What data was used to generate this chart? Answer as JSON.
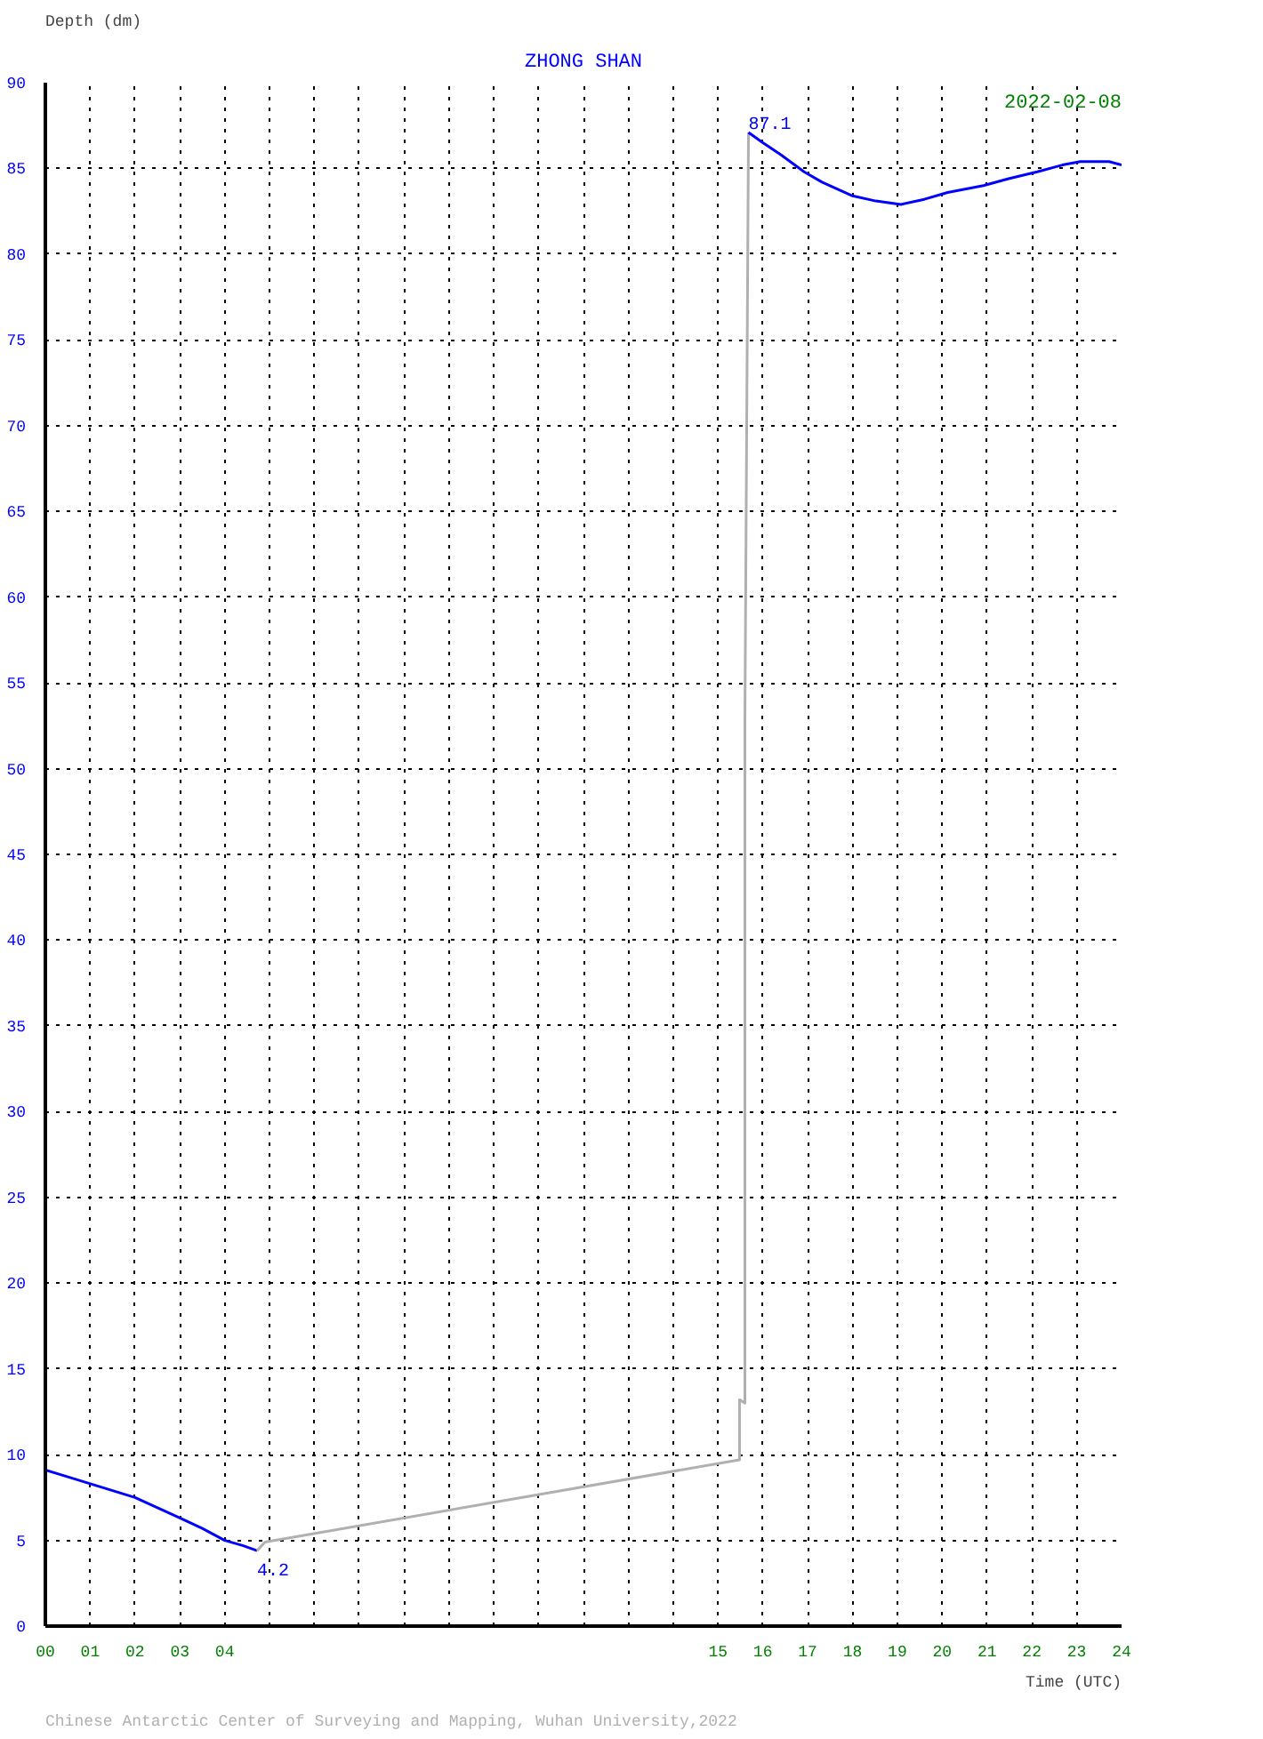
{
  "chart_data": {
    "type": "line",
    "title": "ZHONG SHAN",
    "xlabel": "Time (UTC)",
    "ylabel": "Depth (dm)",
    "xlim": [
      0,
      24
    ],
    "ylim": [
      0,
      90
    ],
    "xticks": [
      {
        "value": 0,
        "label": "00"
      },
      {
        "value": 1,
        "label": "01"
      },
      {
        "value": 2,
        "label": "02"
      },
      {
        "value": 3,
        "label": "03"
      },
      {
        "value": 4,
        "label": "04"
      },
      {
        "value": 5,
        "label": null
      },
      {
        "value": 6,
        "label": null
      },
      {
        "value": 7,
        "label": null
      },
      {
        "value": 8,
        "label": null
      },
      {
        "value": 9,
        "label": null
      },
      {
        "value": 10,
        "label": null
      },
      {
        "value": 11,
        "label": null
      },
      {
        "value": 12,
        "label": null
      },
      {
        "value": 13,
        "label": null
      },
      {
        "value": 14,
        "label": null
      },
      15,
      16,
      17,
      18,
      19,
      20,
      21,
      22,
      23,
      24
    ],
    "yticks": [
      0,
      5,
      10,
      15,
      20,
      25,
      30,
      35,
      40,
      45,
      50,
      55,
      60,
      65,
      70,
      75,
      80,
      85,
      90
    ],
    "grid": true,
    "line_style": "solid",
    "series": [
      {
        "color": "#0000ff",
        "x": [
          0,
          0.5,
          1,
          1.5,
          2,
          2.5,
          3,
          3.5,
          4,
          4.4,
          4.72
        ],
        "values": [
          9.1,
          8.7,
          8.3,
          7.9,
          7.5,
          6.9,
          6.3,
          5.7,
          5.0,
          4.7,
          4.4
        ]
      },
      {
        "color": "#b0b0b0",
        "x": [
          4.72,
          4.9,
          15.48,
          15.48,
          15.6,
          15.6,
          15.68
        ],
        "values": [
          4.4,
          4.9,
          9.7,
          13.2,
          13.0,
          52.8,
          87.1
        ]
      },
      {
        "color": "#0000ff",
        "x": [
          15.68,
          16.0,
          16.4,
          16.92,
          17.32,
          18.0,
          18.52,
          19.08,
          19.6,
          20.12,
          20.92,
          21.48,
          22.12,
          22.68,
          23.08,
          23.72,
          24.0
        ],
        "values": [
          87.1,
          86.5,
          85.8,
          84.8,
          84.2,
          83.4,
          83.1,
          82.9,
          83.2,
          83.6,
          84.0,
          84.4,
          84.8,
          85.2,
          85.4,
          85.4,
          85.2
        ]
      }
    ],
    "annotations": [
      {
        "text": "87.1",
        "x": 15.68,
        "y": 87.1
      },
      {
        "text": "4.2",
        "x": 4.72,
        "y": 4.2
      },
      "2022-02-08",
      "Chinese Antarctic Center of Surveying and Mapping, Wuhan University,2022"
    ]
  }
}
